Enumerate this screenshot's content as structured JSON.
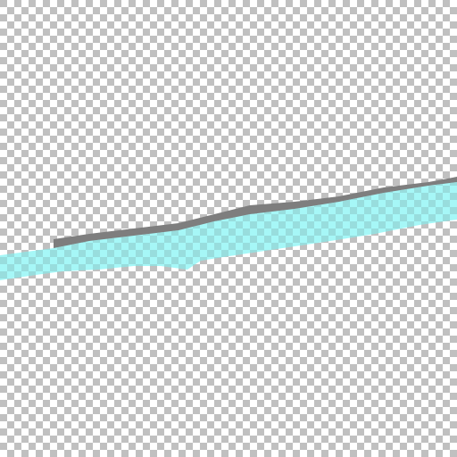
{
  "image": {
    "background": "transparency-checkerboard",
    "subject": "diagonal-stroke"
  },
  "colors": {
    "checker_light": "#ffffff",
    "checker_dark": "#c0c0c0",
    "stroke_fill": "#a6f7f7",
    "stroke_shadow": "#7e7e7e",
    "stroke_dark_checker": "#8cc8c8"
  }
}
